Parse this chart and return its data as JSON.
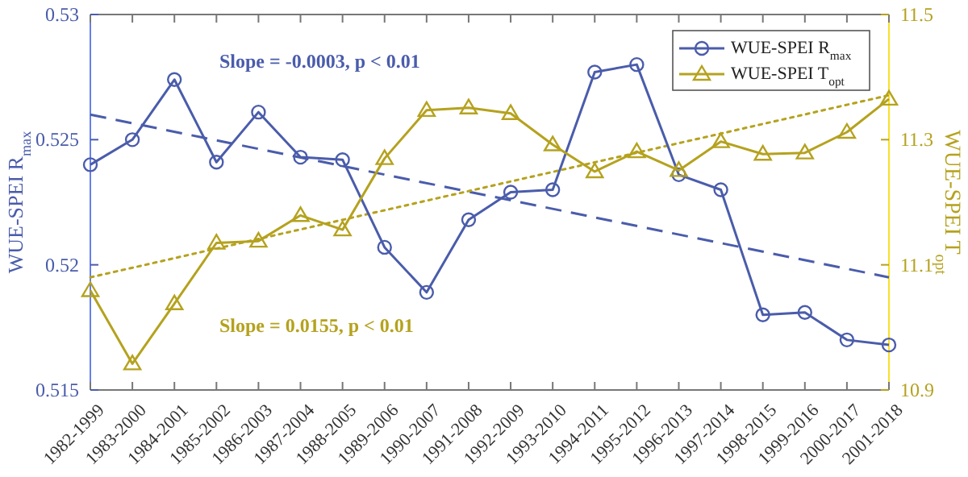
{
  "chart_data": {
    "type": "line",
    "categories": [
      "1982-1999",
      "1983-2000",
      "1984-2001",
      "1985-2002",
      "1986-2003",
      "1987-2004",
      "1988-2005",
      "1989-2006",
      "1990-2007",
      "1991-2008",
      "1992-2009",
      "1993-2010",
      "1994-2011",
      "1995-2012",
      "1996-2013",
      "1997-2014",
      "1998-2015",
      "1999-2016",
      "2000-2017",
      "2001-2018"
    ],
    "ylabel": "WUE-SPEI R$_{max}$",
    "y2label": "WUE-SPEI T$_{opt}$",
    "ylim": [
      0.515,
      0.53
    ],
    "yticks": [
      0.515,
      {
        "value": 0.52,
        "label": "0.52"
      },
      0.525,
      0.53
    ],
    "y2lim": [
      10.9,
      11.5
    ],
    "y2ticks": [
      10.9,
      11.1,
      11.3,
      11.5
    ],
    "legend": "top right",
    "grid": false,
    "annotations": [
      "Slope = -0.0003, p < 0.01",
      "Slope = 0.0155, p < 0.01"
    ],
    "series": [
      {
        "name": "WUE-SPEI R$_{max}$",
        "color": "#4a5cab",
        "marker": "circle",
        "line_style": "solid",
        "values": [
          0.524,
          0.525,
          0.5274,
          0.5241,
          0.5261,
          0.5243,
          0.5242,
          0.5207,
          0.5189,
          0.5218,
          0.5229,
          0.523,
          0.5277,
          0.528,
          0.5236,
          0.523,
          0.518,
          0.5181,
          0.517,
          0.5168
        ]
      },
      {
        "name": "WUE-SPEI T$_{opt}$",
        "color": "#b5a21e",
        "marker": "triangle",
        "line_style": "solid",
        "axis": "y2",
        "values": [
          11.059,
          10.942,
          11.038,
          11.135,
          11.138,
          11.179,
          11.156,
          11.27,
          11.347,
          11.351,
          11.342,
          11.292,
          11.249,
          11.281,
          11.251,
          11.297,
          11.277,
          11.279,
          11.312,
          11.365
        ]
      },
      {
        "type": "line",
        "color": "#4a5cab",
        "marker": "none",
        "line_style": "dashed",
        "x": [
          "1982-1999",
          "2001-2018"
        ],
        "values": [
          0.526,
          0.5195
        ]
      },
      {
        "type": "line",
        "color": "#b5a21e",
        "marker": "none",
        "line_style": "dotted",
        "axis": "y2",
        "x": [
          "1982-1999",
          "2001-2018"
        ],
        "values": [
          11.08,
          11.371
        ]
      }
    ]
  }
}
